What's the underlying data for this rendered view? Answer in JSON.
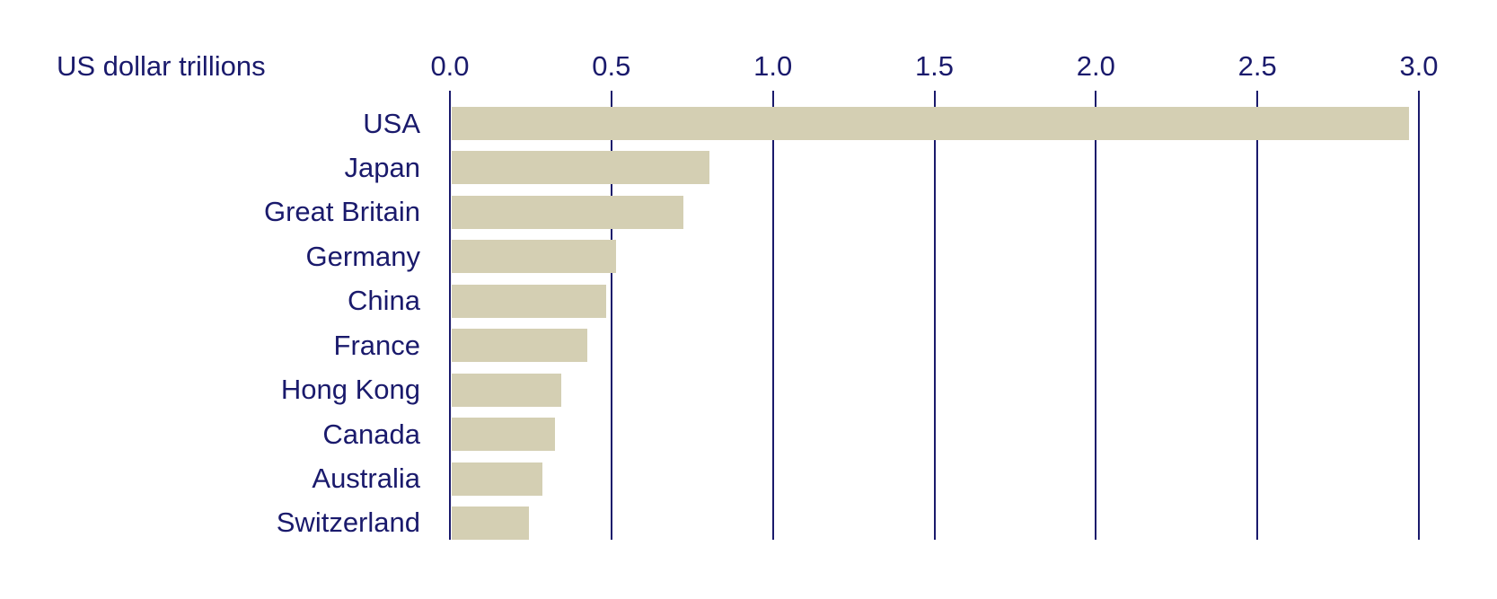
{
  "chart_data": {
    "type": "bar",
    "orientation": "horizontal",
    "title": "US dollar trillions",
    "categories": [
      "USA",
      "Japan",
      "Great Britain",
      "Germany",
      "China",
      "France",
      "Hong Kong",
      "Canada",
      "Australia",
      "Switzerland"
    ],
    "values": [
      2.97,
      0.8,
      0.72,
      0.51,
      0.48,
      0.42,
      0.34,
      0.32,
      0.28,
      0.24
    ],
    "xlim": [
      0.0,
      3.0
    ],
    "tick_labels": [
      "0.0",
      "0.5",
      "1.0",
      "1.5",
      "2.0",
      "2.5",
      "3.0"
    ],
    "xlabel": "",
    "ylabel": "",
    "grid": true,
    "legend": false,
    "colors": {
      "bar": "#d4cfb3",
      "text": "#1a1a6c",
      "gridline": "#1a1a6c",
      "background": "#ffffff"
    }
  }
}
